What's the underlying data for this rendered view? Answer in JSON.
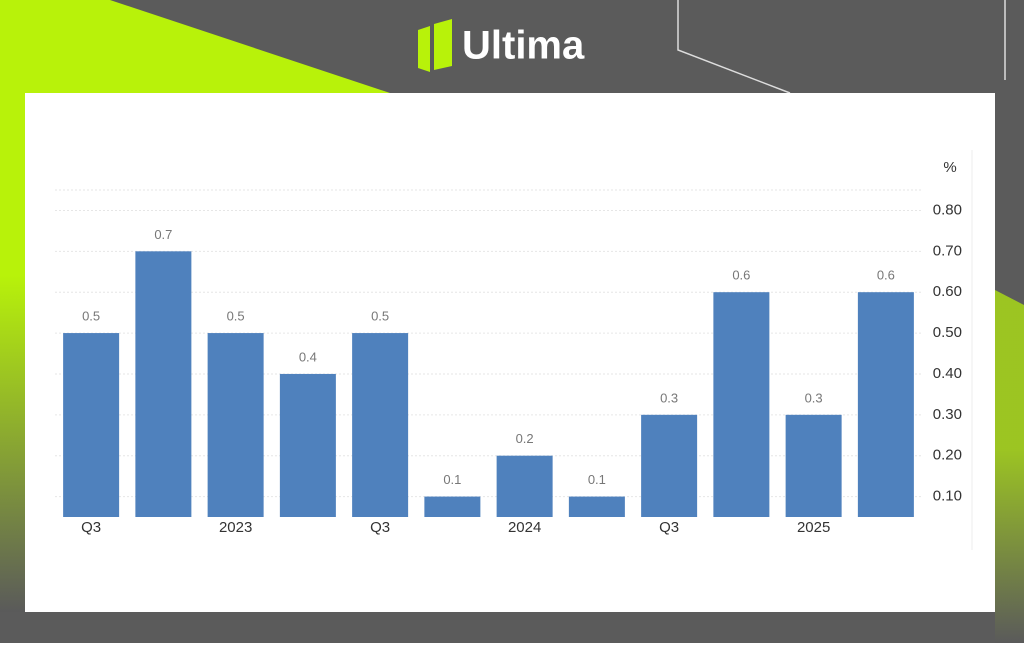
{
  "brand": "Ultima",
  "chart_data": {
    "type": "bar",
    "categories": [
      "Q3",
      null,
      "2023",
      null,
      "Q3",
      null,
      "2024",
      null,
      "Q3",
      null,
      "2025",
      null
    ],
    "values": [
      0.5,
      0.7,
      0.5,
      0.4,
      0.5,
      0.1,
      0.2,
      0.1,
      0.3,
      0.6,
      0.3,
      0.6
    ],
    "color": "#4f81bd",
    "y_unit": "%",
    "ylim": [
      0.05,
      0.85
    ],
    "yticks": [
      {
        "value": 0.1,
        "label": "0.10"
      },
      {
        "value": 0.2,
        "label": "0.20"
      },
      {
        "value": 0.3,
        "label": "0.30"
      },
      {
        "value": 0.4,
        "label": "0.40"
      },
      {
        "value": 0.5,
        "label": "0.50"
      },
      {
        "value": 0.6,
        "label": "0.60"
      },
      {
        "value": 0.7,
        "label": "0.70"
      },
      {
        "value": 0.8,
        "label": "0.80"
      }
    ],
    "grid": true
  }
}
